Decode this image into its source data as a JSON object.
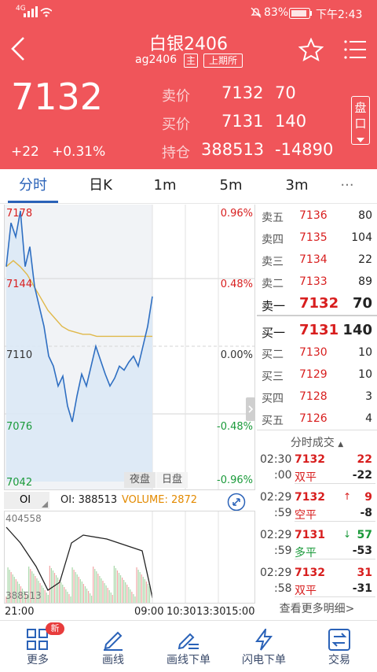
{
  "status": {
    "network": "4G",
    "battery": "83%",
    "time": "下午2:43"
  },
  "header": {
    "title": "白银2406",
    "code": "ag2406",
    "badge_main": "主",
    "exchange": "上期所",
    "last_price": "7132",
    "change": "+22",
    "change_pct": "+0.31%",
    "ask_label": "卖价",
    "ask_price": "7132",
    "ask_vol": "70",
    "bid_label": "买价",
    "bid_price": "7131",
    "bid_vol": "140",
    "oi_label": "持仓",
    "oi_value": "388513",
    "oi_change": "-14890",
    "pankou_label": "盘口"
  },
  "tabs": [
    "分时",
    "日K",
    "1m",
    "5m",
    "3m",
    "···"
  ],
  "intraday": {
    "y_labels": [
      "7178",
      "7144",
      "7110",
      "7076",
      "7042"
    ],
    "pct_labels": [
      "0.96%",
      "0.48%",
      "0.00%",
      "-0.48%",
      "-0.96%"
    ],
    "session_night": "夜盘",
    "session_day": "日盘"
  },
  "indicator": {
    "selector": "OI",
    "oi_text": "OI: 388513",
    "volume_text": "VOLUME: 2872",
    "max": "404558",
    "min": "388513"
  },
  "time_axis": [
    "21:00",
    "09:00",
    "10:30",
    "13:30",
    "15:00"
  ],
  "orderbook": {
    "asks": [
      {
        "label": "卖五",
        "price": "7136",
        "vol": "80"
      },
      {
        "label": "卖四",
        "price": "7135",
        "vol": "104"
      },
      {
        "label": "卖三",
        "price": "7134",
        "vol": "22"
      },
      {
        "label": "卖二",
        "price": "7133",
        "vol": "89"
      },
      {
        "label": "卖一",
        "price": "7132",
        "vol": "70"
      }
    ],
    "bids": [
      {
        "label": "买一",
        "price": "7131",
        "vol": "140"
      },
      {
        "label": "买二",
        "price": "7130",
        "vol": "10"
      },
      {
        "label": "买三",
        "price": "7129",
        "vol": "10"
      },
      {
        "label": "买四",
        "price": "7128",
        "vol": "3"
      },
      {
        "label": "买五",
        "price": "7126",
        "vol": "4"
      }
    ]
  },
  "trades": {
    "title": "分时成交",
    "items": [
      {
        "t1": "02:30",
        "t2": ":00",
        "price": "7132",
        "vol": "22",
        "type": "双平",
        "chg": "-22",
        "arrow": ""
      },
      {
        "t1": "02:29",
        "t2": ":59",
        "price": "7132",
        "vol": "9",
        "type": "空平",
        "chg": "-8",
        "arrow": "↑"
      },
      {
        "t1": "02:29",
        "t2": ":59",
        "price": "7131",
        "vol": "57",
        "type": "多平",
        "chg": "-53",
        "arrow": "↓"
      },
      {
        "t1": "02:29",
        "t2": ":58",
        "price": "7132",
        "vol": "31",
        "type": "双平",
        "chg": "-31",
        "arrow": ""
      }
    ],
    "more": "查看更多明细>"
  },
  "nav": [
    {
      "label": "更多",
      "badge": "新"
    },
    {
      "label": "画线"
    },
    {
      "label": "画线下单"
    },
    {
      "label": "闪电下单"
    },
    {
      "label": "交易"
    }
  ],
  "chart_data": {
    "type": "line",
    "price_range": [
      7042,
      7178
    ],
    "prev_settle": 7110,
    "series": [
      {
        "values": [
          7150,
          7172,
          7165,
          7178,
          7150,
          7160,
          7140,
          7130,
          7120,
          7105,
          7100,
          7090,
          7095,
          7080,
          7072,
          7085,
          7096,
          7090,
          7100,
          7110,
          7103,
          7096,
          7090,
          7094,
          7100,
          7098,
          7102,
          7105,
          7100,
          7110,
          7120,
          7135
        ]
      },
      {
        "values": [
          7150,
          7153,
          7150,
          7146,
          7140,
          7134,
          7128,
          7124,
          7120,
          7118,
          7117,
          7116,
          7116,
          7115,
          7115,
          7115,
          7115,
          7115,
          7115,
          7115,
          7115,
          7115
        ]
      }
    ]
  }
}
